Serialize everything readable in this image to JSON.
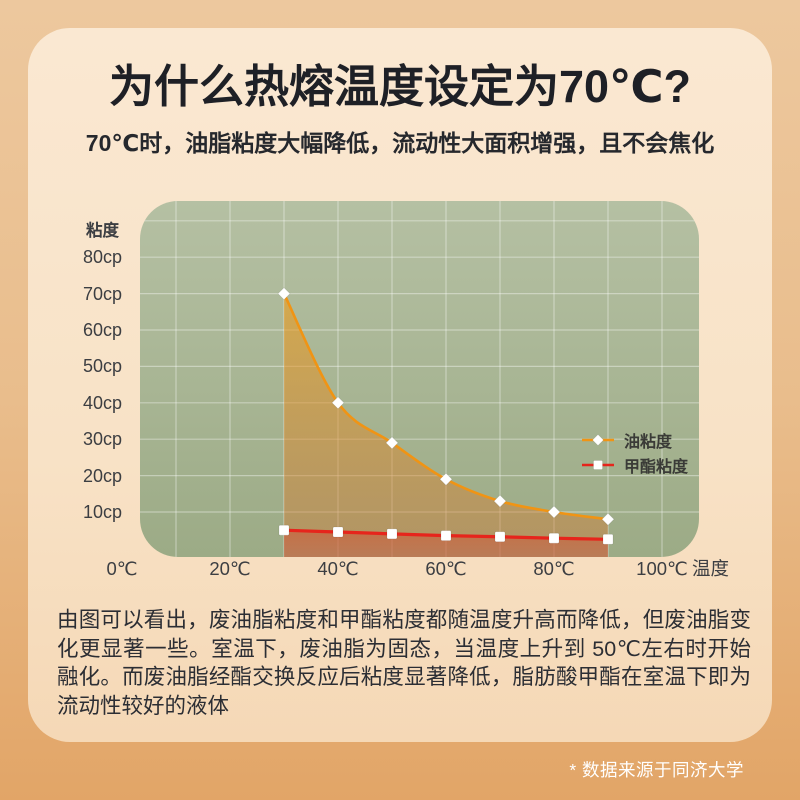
{
  "poster": {
    "title": "为什么热熔温度设定为70℃?",
    "subtitle": "70℃时，油脂粘度大幅降低，流动性大面积增强，且不会焦化",
    "body_paragraph": "由图可以看出，废油脂粘度和甲酯粘度都随温度升高而降低，但废油脂变化更显著一些。室温下，废油脂为固态，当温度上升到 50℃左右时开始融化。而废油脂经酯交换反应后粘度显著降低，脂肪酸甲酯在室温下即为流动性较好的液体",
    "footnote": "* 数据来源于同济大学"
  },
  "chart_data": {
    "type": "line",
    "title": "",
    "xlabel": "温度",
    "ylabel": "粘度",
    "x": [
      30,
      40,
      50,
      60,
      70,
      80,
      90
    ],
    "series": [
      {
        "name": "油粘度",
        "values": [
          70,
          40,
          29,
          19,
          13,
          10,
          8
        ],
        "color": "#f09414",
        "marker": "diamond"
      },
      {
        "name": "甲酯粘度",
        "values": [
          5,
          4.5,
          4,
          3.5,
          3.2,
          2.8,
          2.5
        ],
        "color": "#e6251c",
        "marker": "square"
      }
    ],
    "x_ticks": [
      "0℃",
      "20℃",
      "40℃",
      "60℃",
      "80℃",
      "100℃"
    ],
    "y_ticks": [
      "80cp",
      "70cp",
      "60cp",
      "50cp",
      "40cp",
      "30cp",
      "20cp",
      "10cp"
    ],
    "xlim": [
      0,
      107
    ],
    "ylim": [
      0,
      96
    ],
    "grid": true,
    "legend_position": "right-middle",
    "marker_color": "#ffffff"
  },
  "colors": {
    "accent_orange": "#f09414",
    "accent_red": "#e6251c",
    "panel_green_top": "#b5c0a3",
    "panel_green_bottom": "#9cab86",
    "grid_line": "rgba(255,255,255,0.38)",
    "background_top": "#edc89e",
    "background_bottom": "#e2a567",
    "card": "#f8e2c6",
    "text_dark": "#25262b",
    "footnote_text": "#ffffff"
  }
}
